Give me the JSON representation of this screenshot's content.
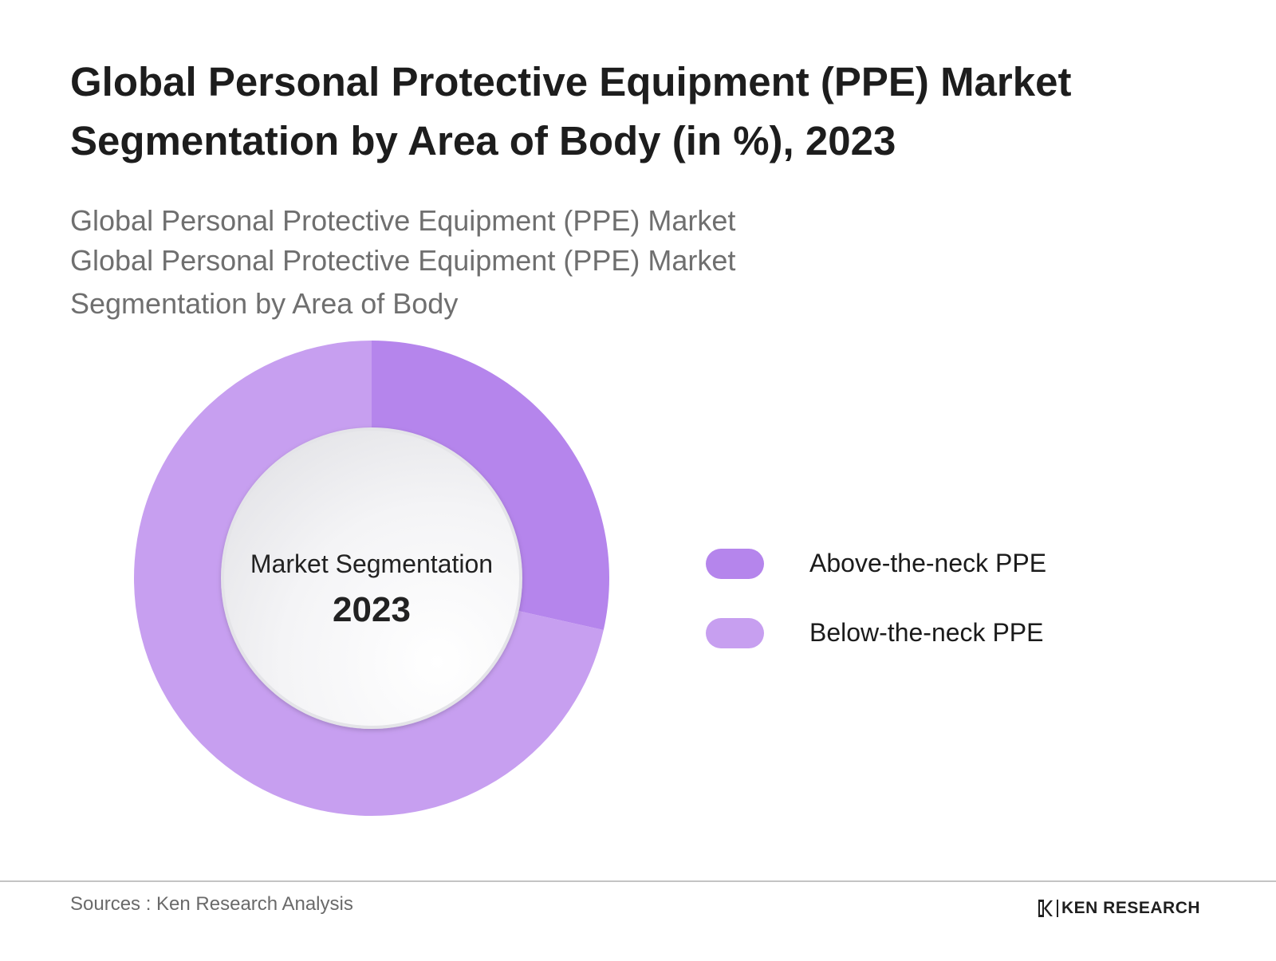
{
  "chart_data": {
    "type": "pie",
    "title": "Global Personal Protective Equipment (PPE) Market Segmentation by Area of Body (in %), 2023",
    "subtitle_lines": [
      "Global Personal Protective Equipment (PPE) Market",
      "Global Personal Protective Equipment (PPE) Market",
      "Segmentation by Area of Body"
    ],
    "center_label": "Market Segmentation",
    "center_value": "2023",
    "categories": [
      "Above-the-neck PPE",
      "Below-the-neck PPE"
    ],
    "values": [
      28.5,
      71.5
    ],
    "colors": [
      "#b585ec",
      "#c79ff0"
    ],
    "donut": true,
    "legend_position": "right"
  },
  "footer": {
    "source": "Sources : Ken Research Analysis",
    "logo_text": "KEN RESEARCH"
  }
}
